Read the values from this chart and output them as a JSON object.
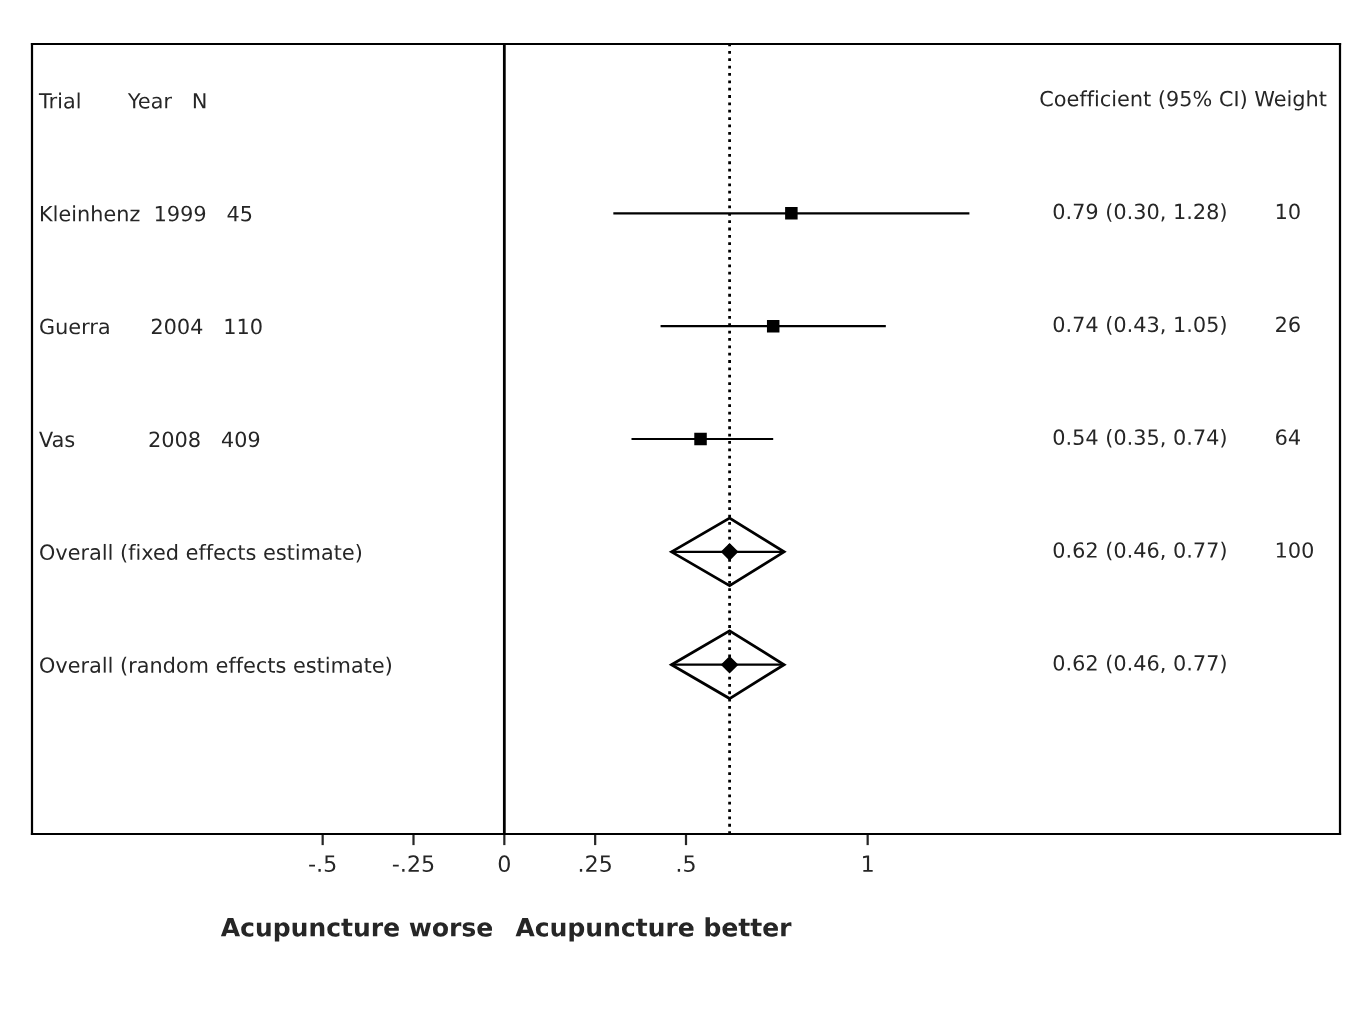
{
  "chart_data": {
    "type": "scatter",
    "orientation": "horizontal",
    "categories": [
      "Trial       Year   N",
      "Kleinhenz  1999   45",
      "Guerra      2004   110",
      "Vas           2008   409",
      "Overall (fixed effects estimate)",
      "Overall (random effects estimate)",
      null
    ],
    "series": [
      {
        "marker": "square",
        "color": "#000000",
        "values": [
          null,
          0.79,
          0.74,
          0.54,
          null,
          null,
          null
        ],
        "errors": [
          null,
          [
            0.3,
            1.28
          ],
          [
            0.43,
            1.05
          ],
          [
            0.35,
            0.74
          ],
          null,
          null,
          null
        ]
      },
      {
        "marker": "diamond",
        "color": "#000000",
        "values": [
          null,
          null,
          null,
          null,
          0.62,
          0.62,
          null
        ],
        "errors": [
          null,
          null,
          null,
          null,
          [
            0.46,
            0.77
          ],
          [
            0.46,
            0.77
          ],
          null
        ]
      }
    ],
    "xlim": [
      -1.3,
      2.3
    ],
    "xticks": [
      {
        "value": -0.5,
        "label": "-.5"
      },
      {
        "value": -0.25,
        "label": "-.25"
      },
      0,
      {
        "value": 0.25,
        "label": ".25"
      },
      {
        "value": 0.5,
        "label": ".5"
      },
      1
    ],
    "grid": false,
    "ref_lines": [
      {
        "axis": "x",
        "value": 0,
        "line_style": "solid"
      },
      {
        "axis": "x",
        "value": 0.62,
        "line_style": "dotted"
      }
    ],
    "annotations": [
      "Coefficient (95% CI) Weight",
      "Acupuncture worse",
      "Acupuncture better",
      "10",
      "26",
      "64",
      "100",
      "0.79 (0.30, 1.28)",
      "0.74 (0.43, 1.05)",
      "0.54 (0.35, 0.74)",
      "0.62 (0.46, 0.77)",
      "0.62 (0.46, 0.77)"
    ]
  }
}
